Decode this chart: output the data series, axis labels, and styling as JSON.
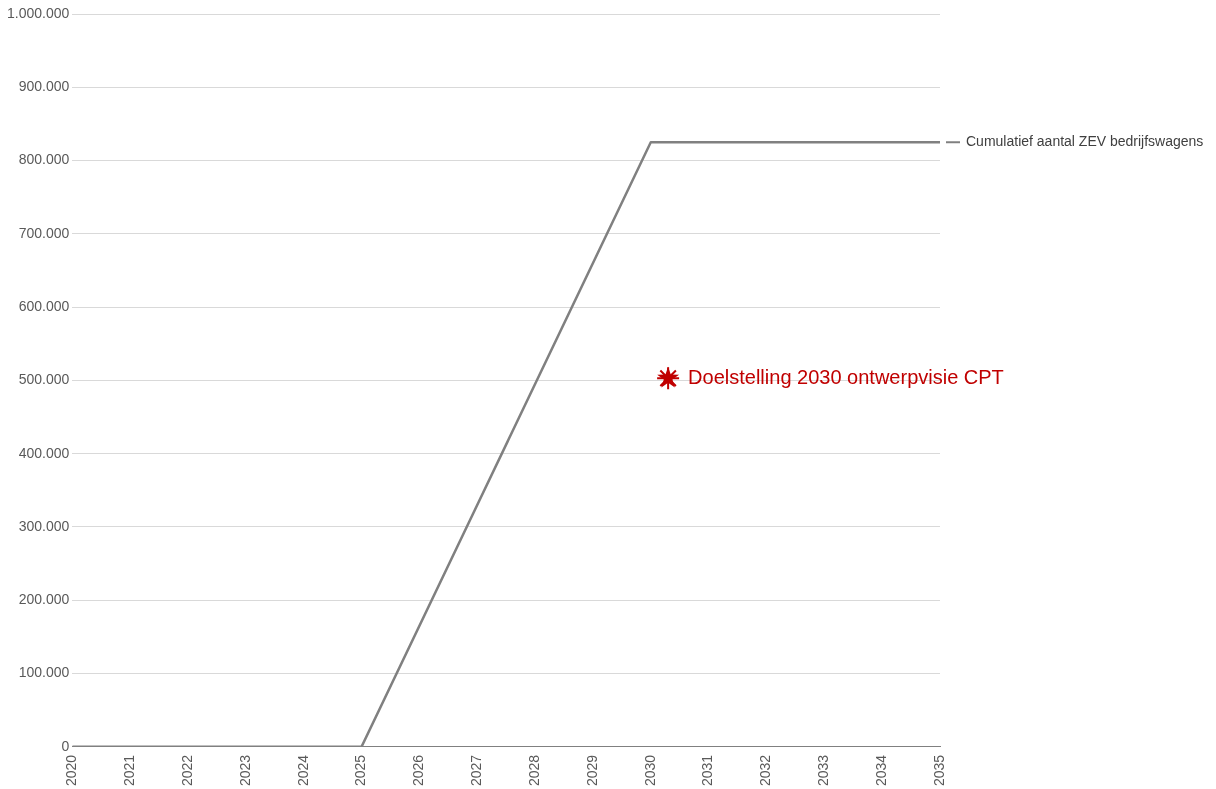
{
  "chart_data": {
    "type": "line",
    "xlim": [
      2020,
      2035
    ],
    "xticks": [
      2020,
      2021,
      2022,
      2023,
      2024,
      2025,
      2026,
      2027,
      2028,
      2029,
      2030,
      2031,
      2032,
      2033,
      2034,
      2035
    ],
    "ylim": [
      0,
      1000000
    ],
    "yticks": [
      {
        "value": 0,
        "label": "0"
      },
      {
        "value": 100000,
        "label": "100.000"
      },
      {
        "value": 200000,
        "label": "200.000"
      },
      {
        "value": 300000,
        "label": "300.000"
      },
      {
        "value": 400000,
        "label": "400.000"
      },
      {
        "value": 500000,
        "label": "500.000"
      },
      {
        "value": 600000,
        "label": "600.000"
      },
      {
        "value": 700000,
        "label": "700.000"
      },
      {
        "value": 800000,
        "label": "800.000"
      },
      {
        "value": 900000,
        "label": "900.000"
      },
      {
        "value": 1000000,
        "label": "1.000.000"
      }
    ],
    "grid": "y",
    "legend": "right",
    "series": [
      {
        "name": "Cumulatief aantal ZEV bedrijfswagens",
        "color": "#808080",
        "marker": "none",
        "x": [
          2020,
          2025,
          2030,
          2035
        ],
        "values": [
          0,
          0,
          825000,
          825000
        ]
      },
      {
        "name": "Doelstelling 2030 ontwerpvisie CPT",
        "type": "scatter",
        "color": "#c00000",
        "marker": "star",
        "x": [
          2030.3
        ],
        "values": [
          503000
        ]
      }
    ]
  }
}
